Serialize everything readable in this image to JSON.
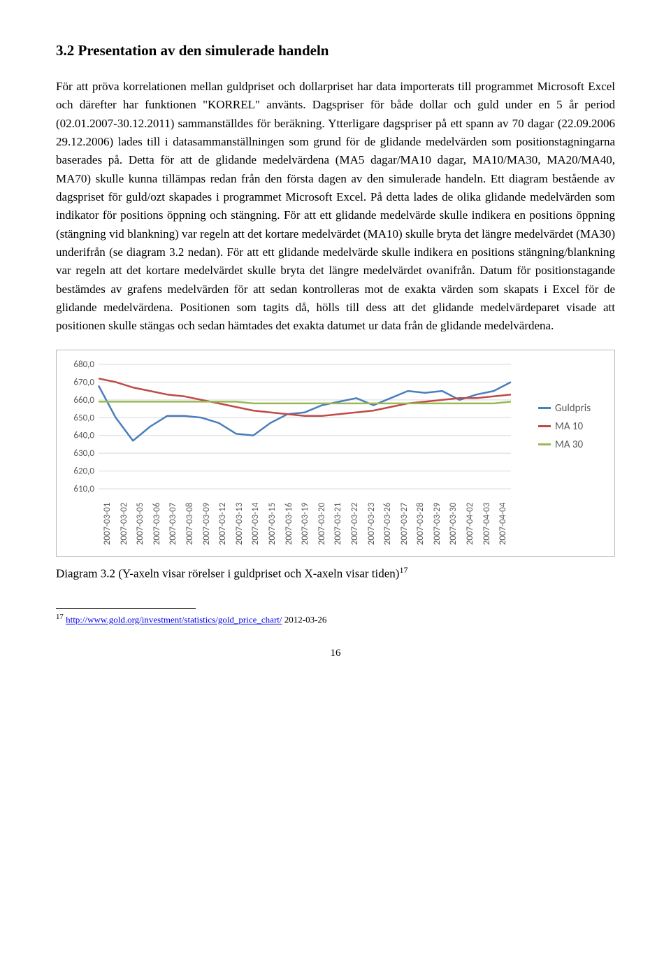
{
  "heading": "3.2 Presentation av den simulerade handeln",
  "body": "För att pröva korrelationen mellan guldpriset och dollarpriset har data importerats till programmet Microsoft Excel och därefter har funktionen \"KORREL\" använts. Dagspriser för både dollar och guld under en 5 år period (02.01.2007-30.12.2011) sammanställdes för beräkning. Ytterligare dagspriser på ett spann av 70 dagar (22.09.2006 29.12.2006) lades till i datasammanställningen som grund för de glidande medelvärden som positionstagningarna baserades på. Detta för att de glidande medelvärdena (MA5 dagar/MA10 dagar, MA10/MA30, MA20/MA40, MA70) skulle kunna tillämpas redan från den första dagen av den simulerade handeln. Ett diagram bestående av dagspriset för guld/ozt skapades i programmet Microsoft Excel. På detta lades de olika glidande medelvärden som indikator för positions öppning och stängning. För att ett glidande medelvärde skulle indikera en positions öppning (stängning vid blankning) var regeln att det kortare medelvärdet (MA10) skulle bryta det längre medelvärdet (MA30) underifrån (se diagram 3.2 nedan). För att ett glidande medelvärde skulle indikera en positions stängning/blankning var regeln att det kortare medelvärdet skulle bryta det längre medelvärdet ovanifrån. Datum för positionstagande bestämdes av grafens medelvärden för att sedan kontrolleras mot de exakta värden som skapats i Excel för de glidande medelvärdena. Positionen som tagits då, hölls till dess att det glidande medelvärdeparet visade att positionen skulle stängas och sedan hämtades det exakta datumet ur data från de glidande medelvärdena.",
  "chart": {
    "type": "line",
    "y_ticks": [
      "680,0",
      "670,0",
      "660,0",
      "650,0",
      "640,0",
      "630,0",
      "620,0",
      "610,0"
    ],
    "y_min": 610,
    "y_max": 680,
    "x_labels": [
      "2007-03-01",
      "2007-03-02",
      "2007-03-05",
      "2007-03-06",
      "2007-03-07",
      "2007-03-08",
      "2007-03-09",
      "2007-03-12",
      "2007-03-13",
      "2007-03-14",
      "2007-03-15",
      "2007-03-16",
      "2007-03-19",
      "2007-03-20",
      "2007-03-21",
      "2007-03-22",
      "2007-03-23",
      "2007-03-26",
      "2007-03-27",
      "2007-03-28",
      "2007-03-29",
      "2007-03-30",
      "2007-04-02",
      "2007-04-03",
      "2007-04-04"
    ],
    "series": {
      "guldpris": {
        "color": "#4a7ebb",
        "label": "Guldpris",
        "values": [
          668,
          650,
          637,
          645,
          651,
          651,
          650,
          647,
          641,
          640,
          647,
          652,
          653,
          657,
          659,
          661,
          657,
          661,
          665,
          664,
          665,
          660,
          663,
          665,
          670
        ]
      },
      "ma10": {
        "color": "#be4b48",
        "label": "MA 10",
        "values": [
          672,
          670,
          667,
          665,
          663,
          662,
          660,
          658,
          656,
          654,
          653,
          652,
          651,
          651,
          652,
          653,
          654,
          656,
          658,
          659,
          660,
          661,
          661,
          662,
          663
        ]
      },
      "ma30": {
        "color": "#98b954",
        "label": "MA 30",
        "values": [
          659,
          659,
          659,
          659,
          659,
          659,
          659,
          659,
          659,
          658,
          658,
          658,
          658,
          658,
          658,
          658,
          658,
          658,
          658,
          658,
          658,
          658,
          658,
          658,
          659
        ]
      }
    },
    "plot_area_bg": "#ffffff",
    "grid_color": "#d9d9d9",
    "axis_label_color": "#595959",
    "axis_fontsize": 13,
    "line_width": 2.5,
    "legend_fontsize": 15
  },
  "caption_prefix": "Diagram 3.2 (Y-axeln visar rörelser i guldpriset och X-axeln visar tiden)",
  "caption_footnote_num": "17",
  "footnote_num": "17",
  "footnote_link_text": "http://www.gold.org/investment/statistics/gold_price_chart/",
  "footnote_date": " 2012-03-26",
  "page_number": "16"
}
